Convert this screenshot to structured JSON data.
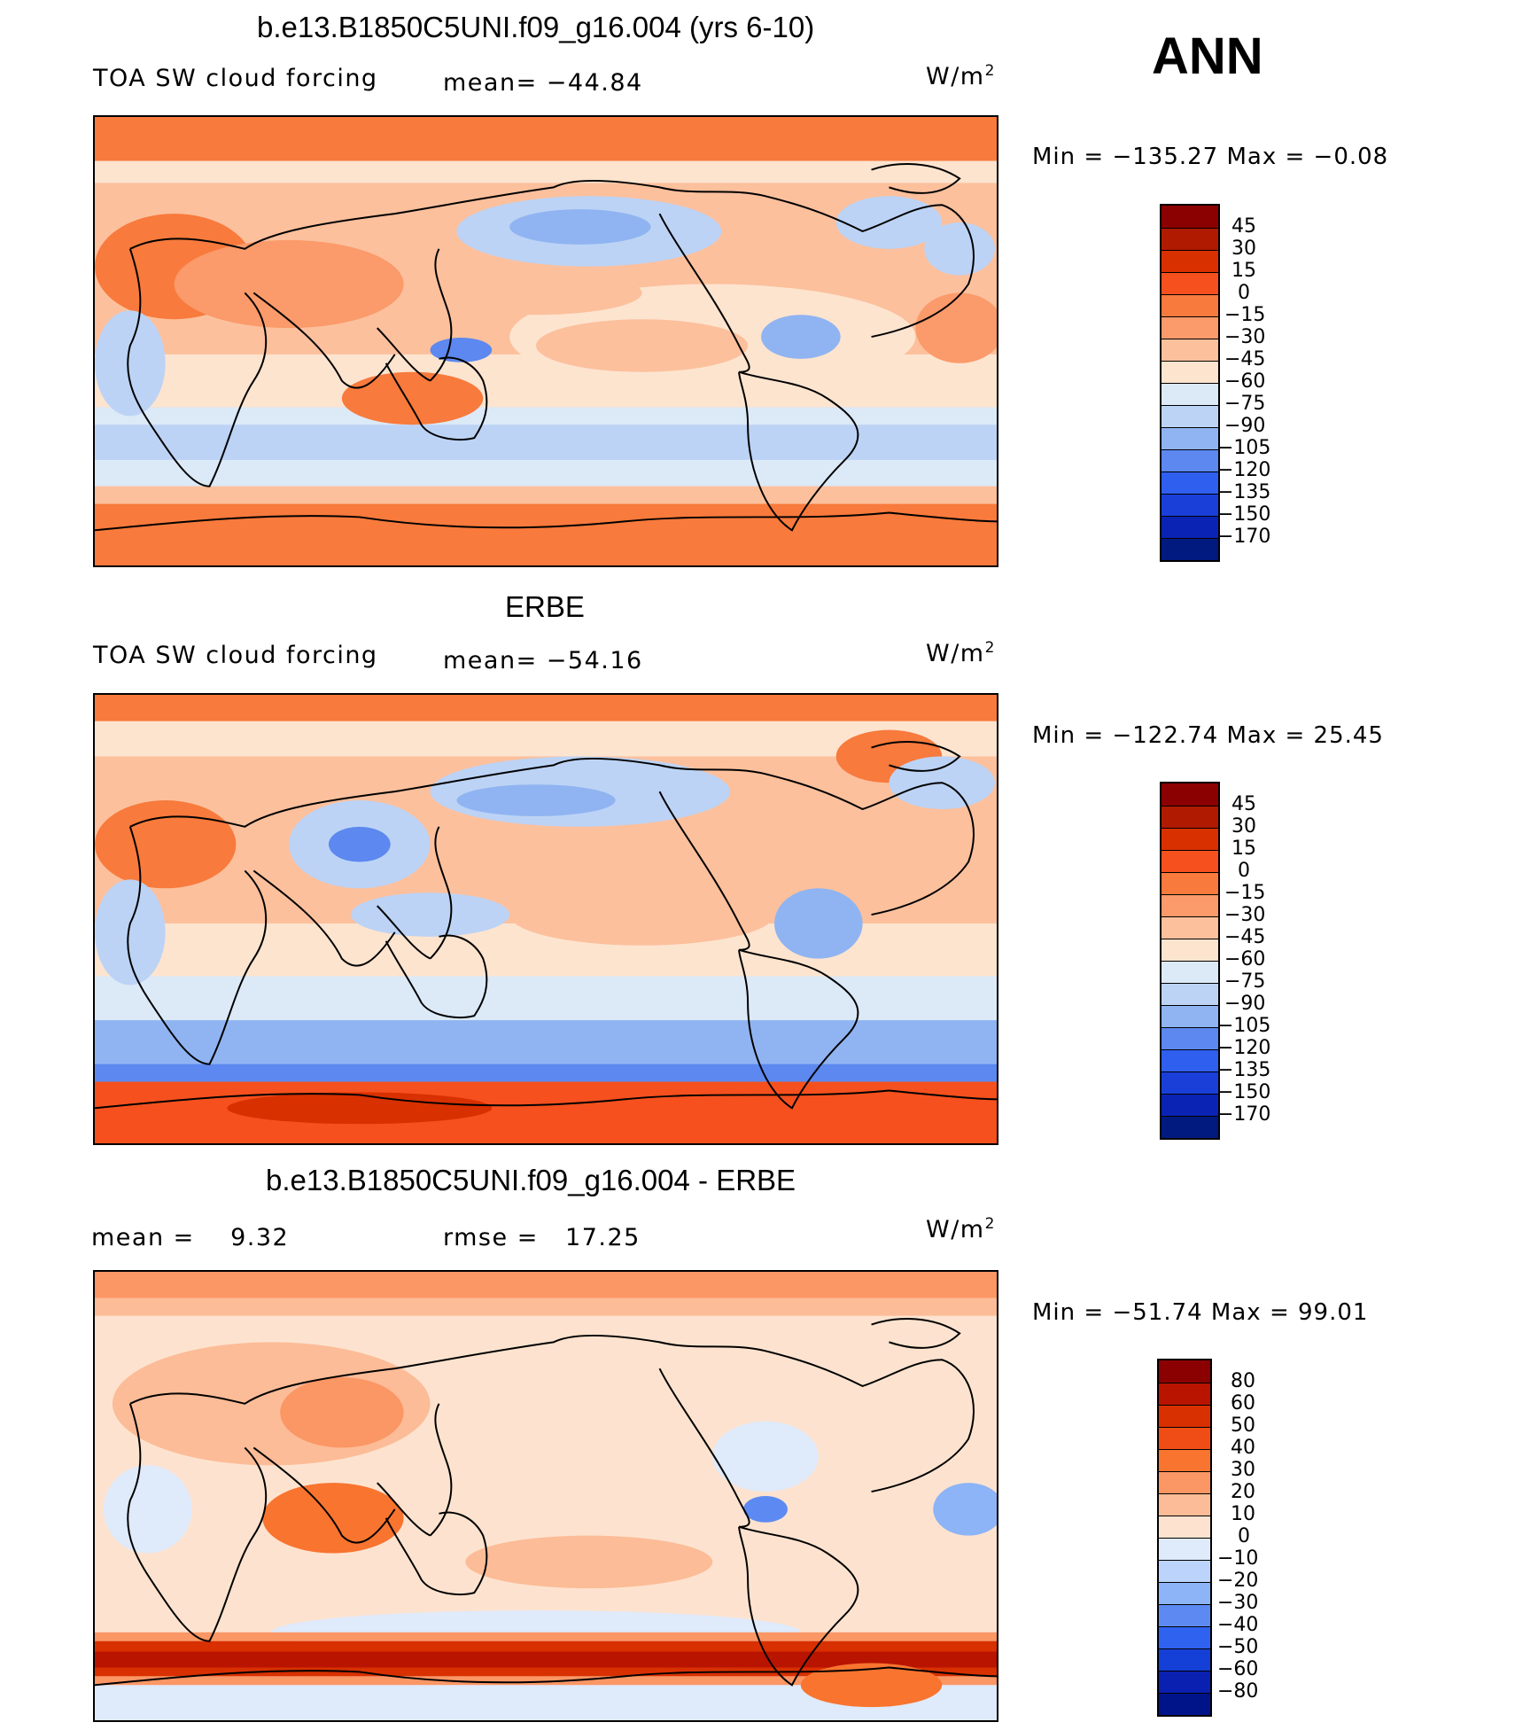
{
  "season": "ANN",
  "panels": [
    {
      "title": "b.e13.B1850C5UNI.f09_g16.004 (yrs 6-10)",
      "variable": "TOA SW cloud forcing",
      "stat1": "mean= −44.84",
      "units_base": "W/m",
      "units_exp": "2",
      "minmax": "Min = −135.27 Max =  −0.08",
      "colorbar_labels": [
        "45",
        "30",
        "15",
        "0",
        "−15",
        "−30",
        "−45",
        "−60",
        "−75",
        "−90",
        "−105",
        "−120",
        "−135",
        "−150",
        "−170"
      ]
    },
    {
      "title": "ERBE",
      "variable": "TOA SW cloud forcing",
      "stat1": "mean= −54.16",
      "units_base": "W/m",
      "units_exp": "2",
      "minmax": "Min = −122.74 Max =  25.45",
      "colorbar_labels": [
        "45",
        "30",
        "15",
        "0",
        "−15",
        "−30",
        "−45",
        "−60",
        "−75",
        "−90",
        "−105",
        "−120",
        "−135",
        "−150",
        "−170"
      ]
    },
    {
      "title": "b.e13.B1850C5UNI.f09_g16.004 - ERBE",
      "stat_left": "mean =    9.32",
      "stat_mid": "rmse =   17.25",
      "units_base": "W/m",
      "units_exp": "2",
      "minmax": "Min = −51.74 Max =  99.01",
      "colorbar_labels": [
        "80",
        "60",
        "50",
        "40",
        "30",
        "20",
        "10",
        "0",
        "−10",
        "−20",
        "−30",
        "−40",
        "−50",
        "−60",
        "−80"
      ]
    }
  ],
  "colors": {
    "abs_scale": [
      "#8b0000",
      "#b01a00",
      "#d93000",
      "#f5501e",
      "#f87a3c",
      "#fb9a6a",
      "#fcc09d",
      "#fde4cf",
      "#dce9f7",
      "#bcd3f5",
      "#90b4f2",
      "#5c88ef",
      "#2f5fef",
      "#1a3fd9",
      "#0a23b4",
      "#001a80"
    ],
    "diff_scale": [
      "#8b0000",
      "#b81400",
      "#d83000",
      "#f04d16",
      "#f8742f",
      "#fb9665",
      "#fcbc97",
      "#fde3cf",
      "#dfeafb",
      "#bcd4fb",
      "#8db4f6",
      "#5d8af2",
      "#2f62ee",
      "#1440d8",
      "#0a20b0",
      "#00148a"
    ]
  }
}
